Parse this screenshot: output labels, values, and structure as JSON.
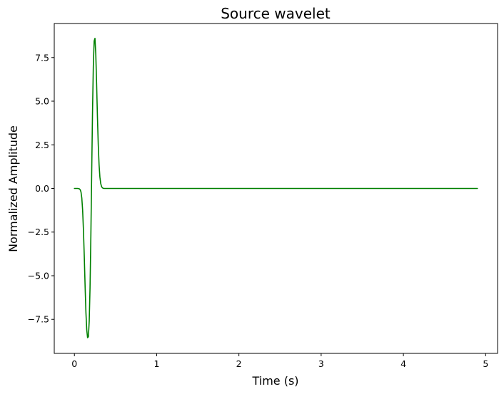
{
  "chart_data": {
    "type": "line",
    "title": "Source wavelet",
    "xlabel": "Time (s)",
    "ylabel": "Normalized Amplitude",
    "xlim": [
      -0.245,
      5.145
    ],
    "ylim": [
      -9.45,
      9.45
    ],
    "x_ticks": [
      0,
      1,
      2,
      3,
      4,
      5
    ],
    "x_tick_labels": [
      "0",
      "1",
      "2",
      "3",
      "4",
      "5"
    ],
    "y_ticks": [
      -7.5,
      -5.0,
      -2.5,
      0.0,
      2.5,
      5.0,
      7.5
    ],
    "y_tick_labels": [
      "−7.5",
      "−5.0",
      "−2.5",
      "0.0",
      "2.5",
      "5.0",
      "7.5"
    ],
    "grid": false,
    "legend": "none",
    "series": [
      {
        "color": "#008000",
        "x": [
          0,
          0.02,
          0.04,
          0.06,
          0.07,
          0.08,
          0.09,
          0.1,
          0.11,
          0.12,
          0.13,
          0.14,
          0.15,
          0.16,
          0.17,
          0.18,
          0.19,
          0.2,
          0.21,
          0.22,
          0.23,
          0.24,
          0.25,
          0.26,
          0.27,
          0.28,
          0.29,
          0.3,
          0.31,
          0.32,
          0.33,
          0.34,
          0.35,
          0.36,
          0.37,
          0.38,
          0.39,
          0.4,
          0.42,
          0.45,
          0.5,
          1.0,
          2.0,
          3.0,
          4.0,
          4.9
        ],
        "y": [
          0.0,
          0.0,
          0.0,
          -0.02,
          -0.07,
          -0.2,
          -0.55,
          -1.25,
          -2.4,
          -3.9,
          -5.6,
          -7.1,
          -8.1,
          -8.55,
          -8.5,
          -7.6,
          -5.7,
          -2.75,
          0.8,
          4.3,
          7.0,
          8.45,
          8.6,
          7.7,
          6.0,
          4.1,
          2.5,
          1.35,
          0.65,
          0.28,
          0.11,
          0.04,
          0.01,
          0.0,
          0.0,
          0.0,
          0.0,
          0.0,
          0.0,
          0.0,
          0.0,
          0.0,
          0.0,
          0.0,
          0.0,
          0.0
        ]
      }
    ]
  }
}
